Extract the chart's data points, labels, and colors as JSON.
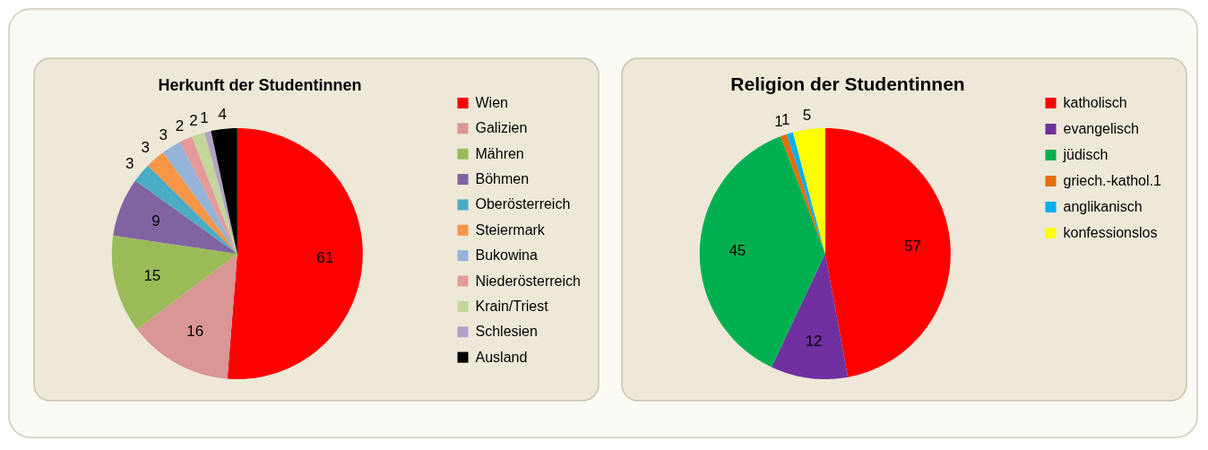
{
  "chart_data": [
    {
      "type": "pie",
      "title": "Herkunft  der Studentinnen",
      "categories": [
        "Wien",
        "Galizien",
        "Mähren",
        "Böhmen",
        "Oberösterreich",
        "Steiermark",
        "Bukowina",
        "Niederösterreich",
        "Krain/Triest",
        "Schlesien",
        "Ausland"
      ],
      "values": [
        61,
        16,
        15,
        9,
        3,
        3,
        3,
        2,
        2,
        1,
        4
      ],
      "colors": [
        "#ff0000",
        "#d99694",
        "#9bbb59",
        "#8064a2",
        "#4bacc6",
        "#f79646",
        "#95b3d7",
        "#e6999b",
        "#c3d69b",
        "#b3a2c7",
        "#000000"
      ],
      "data_labels": true,
      "legend": "right"
    },
    {
      "type": "pie",
      "title": "Religion der Studentinnen",
      "categories": [
        "katholisch",
        "evangelisch",
        "jüdisch",
        "griech.-kathol.1",
        "anglikanisch",
        "konfessionslos"
      ],
      "values": [
        57,
        12,
        45,
        1,
        1,
        5
      ],
      "colors": [
        "#ff0000",
        "#7030a0",
        "#00b050",
        "#e46c0a",
        "#00b0f0",
        "#ffff00"
      ],
      "data_labels": true,
      "legend": "right"
    }
  ]
}
